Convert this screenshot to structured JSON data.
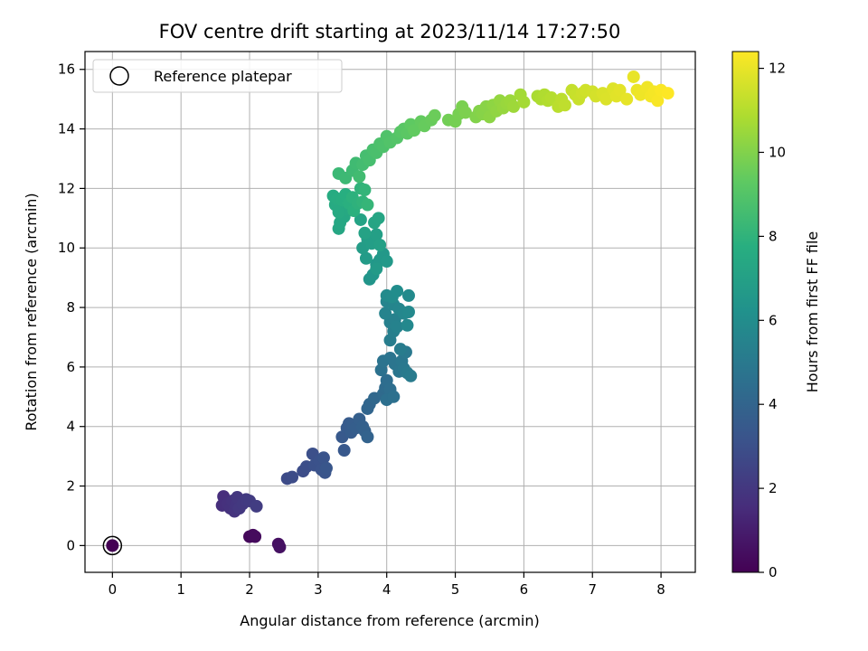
{
  "chart_data": {
    "type": "scatter",
    "title": "FOV centre drift starting at 2023/11/14 17:27:50",
    "xlabel": "Angular distance from reference (arcmin)",
    "ylabel": "Rotation from reference (arcmin)",
    "xlim": [
      -0.4,
      8.5
    ],
    "ylim": [
      -0.9,
      16.6
    ],
    "xticks": [
      0,
      1,
      2,
      3,
      4,
      5,
      6,
      7,
      8
    ],
    "yticks": [
      0,
      2,
      4,
      6,
      8,
      10,
      12,
      14,
      16
    ],
    "grid": true,
    "legend": {
      "position": "top-left",
      "entries": [
        "Reference platepar"
      ]
    },
    "colorbar": {
      "label": "Hours from first FF file",
      "colormap": "viridis",
      "range": [
        0,
        12.4
      ],
      "ticks": [
        0,
        2,
        4,
        6,
        8,
        10,
        12
      ]
    },
    "reference_point": {
      "x": 0,
      "y": 0
    },
    "points": [
      [
        0,
        0,
        0
      ],
      [
        2,
        0.3,
        0.25
      ],
      [
        2.05,
        0.35,
        0.3
      ],
      [
        2.08,
        0.3,
        0.35
      ],
      [
        2.42,
        0.05,
        0.5
      ],
      [
        2.44,
        -0.05,
        0.55
      ],
      [
        1.62,
        1.65,
        1.6
      ],
      [
        1.6,
        1.35,
        1.65
      ],
      [
        1.68,
        1.4,
        1.7
      ],
      [
        1.72,
        1.25,
        1.75
      ],
      [
        1.75,
        1.5,
        1.8
      ],
      [
        1.78,
        1.15,
        1.85
      ],
      [
        1.8,
        1.35,
        1.9
      ],
      [
        1.82,
        1.62,
        1.95
      ],
      [
        1.85,
        1.25,
        2.0
      ],
      [
        1.9,
        1.4,
        2.05
      ],
      [
        1.95,
        1.55,
        2.1
      ],
      [
        2.0,
        1.5,
        2.15
      ],
      [
        2.1,
        1.32,
        2.2
      ],
      [
        2.55,
        2.25,
        2.8
      ],
      [
        2.62,
        2.3,
        2.85
      ],
      [
        2.78,
        2.5,
        2.9
      ],
      [
        2.83,
        2.65,
        2.95
      ],
      [
        2.92,
        3.08,
        3.0
      ],
      [
        2.95,
        2.7,
        3.05
      ],
      [
        3.02,
        2.85,
        3.1
      ],
      [
        3.05,
        2.55,
        3.15
      ],
      [
        3.08,
        2.95,
        3.2
      ],
      [
        3.1,
        2.45,
        3.25
      ],
      [
        3.12,
        2.6,
        3.3
      ],
      [
        3.38,
        3.2,
        3.4
      ],
      [
        3.35,
        3.65,
        3.45
      ],
      [
        3.42,
        3.95,
        3.5
      ],
      [
        3.45,
        4.1,
        3.55
      ],
      [
        3.48,
        3.8,
        3.6
      ],
      [
        3.5,
        4.05,
        3.65
      ],
      [
        3.55,
        3.95,
        3.7
      ],
      [
        3.6,
        4.25,
        3.75
      ],
      [
        3.65,
        4.0,
        3.8
      ],
      [
        3.68,
        3.85,
        3.85
      ],
      [
        3.72,
        3.65,
        3.9
      ],
      [
        3.72,
        4.6,
        4.0
      ],
      [
        3.75,
        4.75,
        4.05
      ],
      [
        3.82,
        4.95,
        4.15
      ],
      [
        3.95,
        5.1,
        4.25
      ],
      [
        3.98,
        5.3,
        4.3
      ],
      [
        4.0,
        5.55,
        4.4
      ],
      [
        4.05,
        5.25,
        4.45
      ],
      [
        4.0,
        4.9,
        4.5
      ],
      [
        4.1,
        5.0,
        4.55
      ],
      [
        3.92,
        5.9,
        4.6
      ],
      [
        3.95,
        6.2,
        4.7
      ],
      [
        4.05,
        6.3,
        4.75
      ],
      [
        4.12,
        6.1,
        4.8
      ],
      [
        4.18,
        5.85,
        4.85
      ],
      [
        4.22,
        6.2,
        4.9
      ],
      [
        4.25,
        5.95,
        4.95
      ],
      [
        4.28,
        6.5,
        5.0
      ],
      [
        4.3,
        5.8,
        5.05
      ],
      [
        4.35,
        5.7,
        5.1
      ],
      [
        4.2,
        6.6,
        5.15
      ],
      [
        4.05,
        6.9,
        5.2
      ],
      [
        4.1,
        7.2,
        5.3
      ],
      [
        4.05,
        7.5,
        5.35
      ],
      [
        4.12,
        7.6,
        5.4
      ],
      [
        4.15,
        7.35,
        5.45
      ],
      [
        3.98,
        7.8,
        5.5
      ],
      [
        4.0,
        8.2,
        5.55
      ],
      [
        4.1,
        8.1,
        5.6
      ],
      [
        4.18,
        7.95,
        5.65
      ],
      [
        4.25,
        7.8,
        5.7
      ],
      [
        4.3,
        7.4,
        5.75
      ],
      [
        4.32,
        7.85,
        5.8
      ],
      [
        4.32,
        8.4,
        5.85
      ],
      [
        4.0,
        8.4,
        5.9
      ],
      [
        4.08,
        8.35,
        5.95
      ],
      [
        4.15,
        8.55,
        6.0
      ],
      [
        3.75,
        8.95,
        6.4
      ],
      [
        3.8,
        9.1,
        6.45
      ],
      [
        3.85,
        9.45,
        6.5
      ],
      [
        3.9,
        9.6,
        6.55
      ],
      [
        3.95,
        9.8,
        6.6
      ],
      [
        4.0,
        9.55,
        6.65
      ],
      [
        3.85,
        9.3,
        6.7
      ],
      [
        3.7,
        9.65,
        6.75
      ],
      [
        3.65,
        10.0,
        6.8
      ],
      [
        3.72,
        10.3,
        6.85
      ],
      [
        3.78,
        10.15,
        6.9
      ],
      [
        3.85,
        10.45,
        6.95
      ],
      [
        3.9,
        10.1,
        7.0
      ],
      [
        3.68,
        10.5,
        7.1
      ],
      [
        3.62,
        10.95,
        7.15
      ],
      [
        3.82,
        10.85,
        7.2
      ],
      [
        3.88,
        11.0,
        7.25
      ],
      [
        3.3,
        10.65,
        7.3
      ],
      [
        3.32,
        10.85,
        7.35
      ],
      [
        3.38,
        11.05,
        7.4
      ],
      [
        3.42,
        11.3,
        7.45
      ],
      [
        3.3,
        11.2,
        7.5
      ],
      [
        3.25,
        11.45,
        7.55
      ],
      [
        3.22,
        11.75,
        7.6
      ],
      [
        3.28,
        11.65,
        7.65
      ],
      [
        3.35,
        11.6,
        7.7
      ],
      [
        3.4,
        11.8,
        7.75
      ],
      [
        3.45,
        11.5,
        7.8
      ],
      [
        3.52,
        11.25,
        7.85
      ],
      [
        3.5,
        11.7,
        7.9
      ],
      [
        3.58,
        11.5,
        7.95
      ],
      [
        3.62,
        12.0,
        8.0
      ],
      [
        3.65,
        11.55,
        8.05
      ],
      [
        3.68,
        11.95,
        8.1
      ],
      [
        3.72,
        11.45,
        8.15
      ],
      [
        3.3,
        12.5,
        8.3
      ],
      [
        3.4,
        12.35,
        8.35
      ],
      [
        3.5,
        12.6,
        8.4
      ],
      [
        3.55,
        12.85,
        8.45
      ],
      [
        3.6,
        12.4,
        8.5
      ],
      [
        3.65,
        12.8,
        8.55
      ],
      [
        3.7,
        13.1,
        8.6
      ],
      [
        3.75,
        12.95,
        8.65
      ],
      [
        3.8,
        13.3,
        8.7
      ],
      [
        3.85,
        13.2,
        8.75
      ],
      [
        3.9,
        13.5,
        8.8
      ],
      [
        3.95,
        13.4,
        8.85
      ],
      [
        4.0,
        13.75,
        8.9
      ],
      [
        4.05,
        13.55,
        8.95
      ],
      [
        4.15,
        13.7,
        9.0
      ],
      [
        4.2,
        13.9,
        9.1
      ],
      [
        4.25,
        14.0,
        9.15
      ],
      [
        4.3,
        13.85,
        9.2
      ],
      [
        4.35,
        14.15,
        9.3
      ],
      [
        4.4,
        13.95,
        9.35
      ],
      [
        4.5,
        14.25,
        9.4
      ],
      [
        4.55,
        14.1,
        9.45
      ],
      [
        4.65,
        14.3,
        9.5
      ],
      [
        4.7,
        14.45,
        9.55
      ],
      [
        4.9,
        14.3,
        9.7
      ],
      [
        5.0,
        14.25,
        9.75
      ],
      [
        5.05,
        14.5,
        9.8
      ],
      [
        5.1,
        14.75,
        9.85
      ],
      [
        5.15,
        14.55,
        9.9
      ],
      [
        5.3,
        14.4,
        10.0
      ],
      [
        5.35,
        14.6,
        10.05
      ],
      [
        5.4,
        14.5,
        10.1
      ],
      [
        5.45,
        14.75,
        10.15
      ],
      [
        5.5,
        14.4,
        10.2
      ],
      [
        5.55,
        14.8,
        10.25
      ],
      [
        5.6,
        14.6,
        10.3
      ],
      [
        5.65,
        14.95,
        10.35
      ],
      [
        5.7,
        14.7,
        10.4
      ],
      [
        5.75,
        14.85,
        10.45
      ],
      [
        5.8,
        14.95,
        10.5
      ],
      [
        5.85,
        14.75,
        10.55
      ],
      [
        5.95,
        15.15,
        10.65
      ],
      [
        6.0,
        14.9,
        10.7
      ],
      [
        6.2,
        15.1,
        10.8
      ],
      [
        6.25,
        15.0,
        10.85
      ],
      [
        6.3,
        15.15,
        10.9
      ],
      [
        6.35,
        14.95,
        10.95
      ],
      [
        6.4,
        15.05,
        11.0
      ],
      [
        6.5,
        14.75,
        11.1
      ],
      [
        6.55,
        15.0,
        11.15
      ],
      [
        6.6,
        14.8,
        11.2
      ],
      [
        6.7,
        15.3,
        11.3
      ],
      [
        6.75,
        15.15,
        11.35
      ],
      [
        6.8,
        15.0,
        11.4
      ],
      [
        6.85,
        15.2,
        11.45
      ],
      [
        6.9,
        15.3,
        11.5
      ],
      [
        7.0,
        15.25,
        11.55
      ],
      [
        7.05,
        15.1,
        11.6
      ],
      [
        7.15,
        15.2,
        11.7
      ],
      [
        7.2,
        15.0,
        11.75
      ],
      [
        7.3,
        15.35,
        11.8
      ],
      [
        7.35,
        15.1,
        11.85
      ],
      [
        7.4,
        15.3,
        11.9
      ],
      [
        7.5,
        15.0,
        11.95
      ],
      [
        7.6,
        15.75,
        12.0
      ],
      [
        7.65,
        15.3,
        12.05
      ],
      [
        7.7,
        15.15,
        12.1
      ],
      [
        7.8,
        15.4,
        12.15
      ],
      [
        7.85,
        15.1,
        12.2
      ],
      [
        7.9,
        15.25,
        12.25
      ],
      [
        7.95,
        14.95,
        12.3
      ],
      [
        8.0,
        15.3,
        12.35
      ],
      [
        8.1,
        15.2,
        12.4
      ]
    ]
  }
}
